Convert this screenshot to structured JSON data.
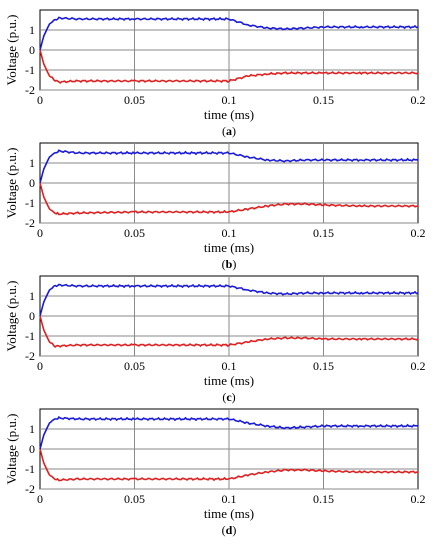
{
  "chart_data": [
    {
      "type": "line",
      "panel": "a",
      "caption_open": "(",
      "caption_letter": "a",
      "caption_close": ")",
      "xlabel": "time (ms)",
      "ylabel": "Voltage (p.u.)",
      "xlim": [
        0,
        0.2
      ],
      "ylim": [
        -2,
        2
      ],
      "xticks": [
        0,
        0.05,
        0.1,
        0.15,
        0.2
      ],
      "xtick_labels": [
        "0",
        "0.05",
        "0.1",
        "0.15",
        "0.2"
      ],
      "yticks": [
        -2,
        -1,
        0,
        1
      ],
      "ytick_labels": [
        "-2",
        "-1",
        "0",
        "1"
      ],
      "grid": true,
      "series": [
        {
          "color": "#1a1adb",
          "x": [
            0,
            0.002,
            0.005,
            0.008,
            0.01,
            0.02,
            0.05,
            0.1,
            0.11,
            0.12,
            0.13,
            0.14,
            0.15,
            0.17,
            0.2
          ],
          "y": [
            0,
            0.7,
            1.3,
            1.5,
            1.6,
            1.55,
            1.55,
            1.55,
            1.25,
            1.1,
            1.05,
            1.1,
            1.15,
            1.15,
            1.15
          ]
        },
        {
          "color": "#e02020",
          "x": [
            0,
            0.002,
            0.005,
            0.008,
            0.01,
            0.02,
            0.05,
            0.1,
            0.11,
            0.12,
            0.13,
            0.14,
            0.15,
            0.17,
            0.2
          ],
          "y": [
            0,
            -0.7,
            -1.3,
            -1.5,
            -1.6,
            -1.55,
            -1.55,
            -1.55,
            -1.3,
            -1.2,
            -1.15,
            -1.15,
            -1.15,
            -1.15,
            -1.15
          ]
        }
      ]
    },
    {
      "type": "line",
      "panel": "b",
      "caption_open": "(",
      "caption_letter": "b",
      "caption_close": ")",
      "xlabel": "time (ms)",
      "ylabel": "Voltage (p.u.)",
      "xlim": [
        0,
        0.2
      ],
      "ylim": [
        -2,
        2
      ],
      "xticks": [
        0,
        0.05,
        0.1,
        0.15,
        0.2
      ],
      "xtick_labels": [
        "0",
        "0.05",
        "0.1",
        "0.15",
        "0.2"
      ],
      "yticks": [
        -2,
        -1,
        0,
        1
      ],
      "ytick_labels": [
        "-2",
        "-1",
        "0",
        "1"
      ],
      "grid": true,
      "series": [
        {
          "color": "#1a1adb",
          "x": [
            0,
            0.002,
            0.005,
            0.008,
            0.01,
            0.02,
            0.05,
            0.1,
            0.11,
            0.12,
            0.13,
            0.14,
            0.15,
            0.17,
            0.2
          ],
          "y": [
            0,
            0.7,
            1.3,
            1.5,
            1.6,
            1.5,
            1.5,
            1.5,
            1.3,
            1.15,
            1.1,
            1.15,
            1.15,
            1.15,
            1.15
          ]
        },
        {
          "color": "#e02020",
          "x": [
            0,
            0.002,
            0.005,
            0.008,
            0.01,
            0.02,
            0.05,
            0.1,
            0.11,
            0.12,
            0.13,
            0.14,
            0.15,
            0.17,
            0.2
          ],
          "y": [
            0,
            -0.7,
            -1.3,
            -1.5,
            -1.55,
            -1.5,
            -1.45,
            -1.45,
            -1.3,
            -1.15,
            -1.05,
            -1.05,
            -1.1,
            -1.15,
            -1.15
          ]
        }
      ]
    },
    {
      "type": "line",
      "panel": "c",
      "caption_open": "(",
      "caption_letter": "c",
      "caption_close": ")",
      "xlabel": "time (ms)",
      "ylabel": "Voltage (p.u.)",
      "xlim": [
        0,
        0.2
      ],
      "ylim": [
        -2,
        2
      ],
      "xticks": [
        0,
        0.05,
        0.1,
        0.15,
        0.2
      ],
      "xtick_labels": [
        "0",
        "0.05",
        "0.1",
        "0.15",
        "0.2"
      ],
      "yticks": [
        -2,
        -1,
        0,
        1
      ],
      "ytick_labels": [
        "-2",
        "-1",
        "0",
        "1"
      ],
      "grid": true,
      "series": [
        {
          "color": "#1a1adb",
          "x": [
            0,
            0.002,
            0.005,
            0.008,
            0.01,
            0.02,
            0.05,
            0.1,
            0.11,
            0.12,
            0.13,
            0.14,
            0.15,
            0.17,
            0.2
          ],
          "y": [
            0,
            0.7,
            1.3,
            1.5,
            1.55,
            1.5,
            1.5,
            1.5,
            1.3,
            1.15,
            1.1,
            1.15,
            1.15,
            1.15,
            1.15
          ]
        },
        {
          "color": "#e02020",
          "x": [
            0,
            0.002,
            0.005,
            0.008,
            0.01,
            0.02,
            0.05,
            0.1,
            0.11,
            0.12,
            0.13,
            0.14,
            0.15,
            0.17,
            0.2
          ],
          "y": [
            0,
            -0.7,
            -1.3,
            -1.5,
            -1.5,
            -1.45,
            -1.45,
            -1.45,
            -1.3,
            -1.15,
            -1.1,
            -1.1,
            -1.15,
            -1.15,
            -1.15
          ]
        }
      ]
    },
    {
      "type": "line",
      "panel": "d",
      "caption_open": "(",
      "caption_letter": "d",
      "caption_close": ")",
      "xlabel": "time (ms)",
      "ylabel": "Voltage (p.u.)",
      "xlim": [
        0,
        0.2
      ],
      "ylim": [
        -2,
        2
      ],
      "xticks": [
        0,
        0.05,
        0.1,
        0.15,
        0.2
      ],
      "xtick_labels": [
        "0",
        "0.05",
        "0.1",
        "0.15",
        "0.2"
      ],
      "yticks": [
        -2,
        -1,
        0,
        1
      ],
      "ytick_labels": [
        "-2",
        "-1",
        "0",
        "1"
      ],
      "grid": true,
      "series": [
        {
          "color": "#1a1adb",
          "x": [
            0,
            0.002,
            0.005,
            0.008,
            0.01,
            0.02,
            0.05,
            0.1,
            0.11,
            0.12,
            0.13,
            0.14,
            0.15,
            0.17,
            0.2
          ],
          "y": [
            0,
            0.7,
            1.3,
            1.5,
            1.55,
            1.5,
            1.5,
            1.5,
            1.3,
            1.15,
            1.05,
            1.1,
            1.15,
            1.15,
            1.15
          ]
        },
        {
          "color": "#e02020",
          "x": [
            0,
            0.002,
            0.005,
            0.008,
            0.01,
            0.02,
            0.05,
            0.1,
            0.11,
            0.12,
            0.13,
            0.14,
            0.15,
            0.17,
            0.2
          ],
          "y": [
            0,
            -0.7,
            -1.3,
            -1.5,
            -1.55,
            -1.5,
            -1.5,
            -1.5,
            -1.3,
            -1.15,
            -1.05,
            -1.05,
            -1.1,
            -1.15,
            -1.15
          ]
        }
      ]
    }
  ]
}
